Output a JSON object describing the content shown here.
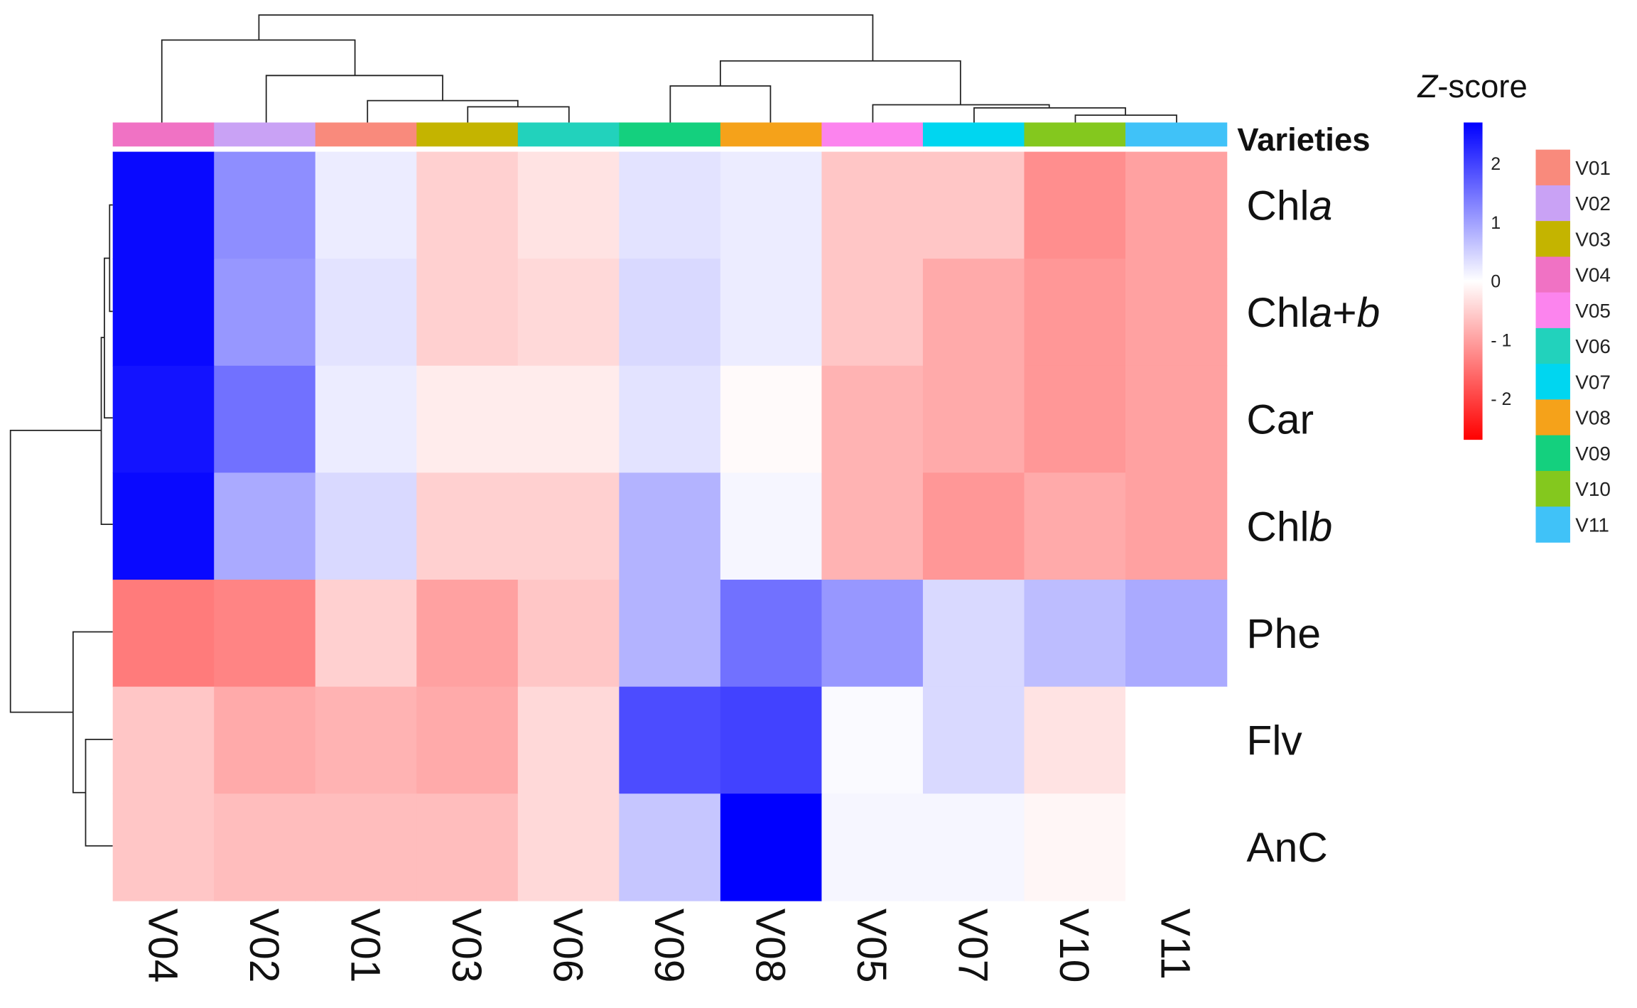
{
  "chart_data": {
    "type": "heatmap",
    "title": "",
    "columns": [
      "V04",
      "V02",
      "V01",
      "V03",
      "V06",
      "V09",
      "V08",
      "V05",
      "V07",
      "V10",
      "V11"
    ],
    "rows": [
      "Chla",
      "Chla+b",
      "Car",
      "Chlb",
      "Phe",
      "Flv",
      "AnC"
    ],
    "row_label_segments": [
      [
        {
          "t": "Chl",
          "i": false
        },
        {
          "t": "a",
          "i": true
        }
      ],
      [
        {
          "t": "Chl",
          "i": false
        },
        {
          "t": "a",
          "i": true
        },
        {
          "t": "+",
          "i": false
        },
        {
          "t": "b",
          "i": true
        }
      ],
      [
        {
          "t": "Car",
          "i": false
        }
      ],
      [
        {
          "t": "Chl",
          "i": false
        },
        {
          "t": "b",
          "i": true
        }
      ],
      [
        {
          "t": "Phe",
          "i": false
        }
      ],
      [
        {
          "t": "Flv",
          "i": false
        }
      ],
      [
        {
          "t": "AnC",
          "i": false
        }
      ]
    ],
    "values": [
      [
        2.6,
        1.2,
        0.2,
        -0.5,
        -0.3,
        0.3,
        0.2,
        -0.6,
        -0.6,
        -1.2,
        -1.0
      ],
      [
        2.6,
        1.1,
        0.3,
        -0.5,
        -0.4,
        0.4,
        0.2,
        -0.6,
        -0.9,
        -1.1,
        -1.0
      ],
      [
        2.5,
        1.5,
        0.2,
        -0.2,
        -0.2,
        0.3,
        -0.05,
        -0.8,
        -0.9,
        -1.1,
        -1.0
      ],
      [
        2.6,
        0.9,
        0.4,
        -0.5,
        -0.5,
        0.8,
        0.1,
        -0.8,
        -1.1,
        -0.9,
        -1.0
      ],
      [
        -1.4,
        -1.3,
        -0.5,
        -1.0,
        -0.6,
        0.8,
        1.5,
        1.1,
        0.4,
        0.7,
        0.9
      ],
      [
        -0.6,
        -0.9,
        -0.8,
        -0.9,
        -0.4,
        1.9,
        2.0,
        0.05,
        0.4,
        -0.3,
        0.0
      ],
      [
        -0.6,
        -0.7,
        -0.7,
        -0.7,
        -0.4,
        0.6,
        2.7,
        0.1,
        0.1,
        -0.1,
        0.0
      ]
    ],
    "color_scale": {
      "title_italic": "Z",
      "title_rest": "-score",
      "min": -2.7,
      "max": 2.7,
      "low": "#ff0000",
      "mid": "#ffffff",
      "high": "#0000ff",
      "ticks": [
        2,
        1,
        0,
        -1,
        -2
      ],
      "tick_labels": [
        "2",
        "1",
        "0",
        "- 1",
        "- 2"
      ]
    },
    "annotation": {
      "label": "Varieties",
      "legend": [
        "V01",
        "V02",
        "V03",
        "V04",
        "V05",
        "V06",
        "V07",
        "V08",
        "V09",
        "V10",
        "V11"
      ],
      "colors": {
        "V01": "#f98a7c",
        "V02": "#c9a2f5",
        "V03": "#c4b400",
        "V04": "#f072c4",
        "V05": "#fc84ee",
        "V06": "#22d2bc",
        "V07": "#00d6f0",
        "V08": "#f5a21a",
        "V09": "#14d07e",
        "V10": "#84c81e",
        "V11": "#40c2f8"
      }
    }
  }
}
